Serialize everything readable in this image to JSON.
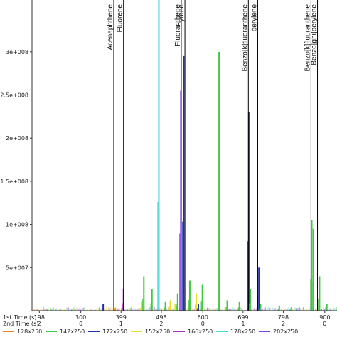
{
  "chart_data": {
    "type": "line",
    "title": "",
    "ylim": [
      0,
      360000000
    ],
    "xlim": [
      180,
      930
    ],
    "y_ticks": [
      {
        "value": 50000000,
        "label": "5e+007"
      },
      {
        "value": 100000000,
        "label": "1e+008"
      },
      {
        "value": 150000000,
        "label": "1.5e+008"
      },
      {
        "value": 200000000,
        "label": "2e+008"
      },
      {
        "value": 250000000,
        "label": "2.5e+008"
      },
      {
        "value": 300000000,
        "label": "3e+008"
      }
    ],
    "x_axis_rows": [
      {
        "label": "1st Time (s)",
        "ticks": [
          {
            "value": 198,
            "label": "198"
          },
          {
            "value": 300,
            "label": "300"
          },
          {
            "value": 399,
            "label": "399"
          },
          {
            "value": 498,
            "label": "498"
          },
          {
            "value": 600,
            "label": "600"
          },
          {
            "value": 699,
            "label": "699"
          },
          {
            "value": 798,
            "label": "798"
          },
          {
            "value": 900,
            "label": "900"
          }
        ]
      },
      {
        "label": "2nd Time (s)",
        "ticks": [
          {
            "value": 198,
            "label": "2"
          },
          {
            "value": 300,
            "label": "0"
          },
          {
            "value": 399,
            "label": "1"
          },
          {
            "value": 498,
            "label": "2"
          },
          {
            "value": 600,
            "label": "0"
          },
          {
            "value": 699,
            "label": "1"
          },
          {
            "value": 798,
            "label": "2"
          },
          {
            "value": 900,
            "label": "0"
          }
        ]
      }
    ],
    "annotations": [
      {
        "text": "Acenaphthene",
        "x": 381
      },
      {
        "text": "Fluorene",
        "x": 405
      },
      {
        "text": "Fluoranthene",
        "x": 547
      },
      {
        "text": "Pyrene",
        "x": 556
      },
      {
        "text": "Benzo[k]fluoranthene",
        "x": 712
      },
      {
        "text": "perylene",
        "x": 735
      },
      {
        "text": "Benzo[k]fluoranthene",
        "x": 866
      },
      {
        "text": "Benzo[ghi]perylene",
        "x": 882
      }
    ],
    "series": [
      {
        "name": "128x250",
        "color": "#f08020"
      },
      {
        "name": "142x250",
        "color": "#3ec83e"
      },
      {
        "name": "172x250",
        "color": "#2030b0"
      },
      {
        "name": "152x250",
        "color": "#e8e020"
      },
      {
        "name": "166x250",
        "color": "#a030c0"
      },
      {
        "name": "178x250",
        "color": "#40d8d8"
      },
      {
        "name": "202x250",
        "color": "#8040e0"
      }
    ],
    "peaks": [
      {
        "series": 2,
        "x": 355,
        "y": 8000000
      },
      {
        "series": 0,
        "x": 385,
        "y": 3000000
      },
      {
        "series": 4,
        "x": 405,
        "y": 25000000
      },
      {
        "series": 3,
        "x": 450,
        "y": 10000000
      },
      {
        "series": 1,
        "x": 455,
        "y": 40000000
      },
      {
        "series": 1,
        "x": 475,
        "y": 25000000
      },
      {
        "series": 5,
        "x": 492,
        "y": 360000000
      },
      {
        "series": 1,
        "x": 508,
        "y": 10000000
      },
      {
        "series": 3,
        "x": 520,
        "y": 12000000
      },
      {
        "series": 3,
        "x": 532,
        "y": 8000000
      },
      {
        "series": 1,
        "x": 538,
        "y": 20000000
      },
      {
        "series": 6,
        "x": 546,
        "y": 255000000
      },
      {
        "series": 2,
        "x": 553,
        "y": 295000000
      },
      {
        "series": 1,
        "x": 568,
        "y": 35000000
      },
      {
        "series": 3,
        "x": 584,
        "y": 20000000
      },
      {
        "series": 2,
        "x": 589,
        "y": 8000000
      },
      {
        "series": 1,
        "x": 599,
        "y": 30000000
      },
      {
        "series": 1,
        "x": 640,
        "y": 300000000
      },
      {
        "series": 1,
        "x": 660,
        "y": 12000000
      },
      {
        "series": 1,
        "x": 690,
        "y": 10000000
      },
      {
        "series": 2,
        "x": 713,
        "y": 230000000
      },
      {
        "series": 1,
        "x": 717,
        "y": 25000000
      },
      {
        "series": 2,
        "x": 738,
        "y": 50000000
      },
      {
        "series": 1,
        "x": 742,
        "y": 8000000
      },
      {
        "series": 1,
        "x": 788,
        "y": 6000000
      },
      {
        "series": 1,
        "x": 818,
        "y": 4000000
      },
      {
        "series": 1,
        "x": 868,
        "y": 105000000
      },
      {
        "series": 1,
        "x": 872,
        "y": 95000000
      },
      {
        "series": 1,
        "x": 887,
        "y": 40000000
      },
      {
        "series": 1,
        "x": 905,
        "y": 8000000
      }
    ]
  }
}
